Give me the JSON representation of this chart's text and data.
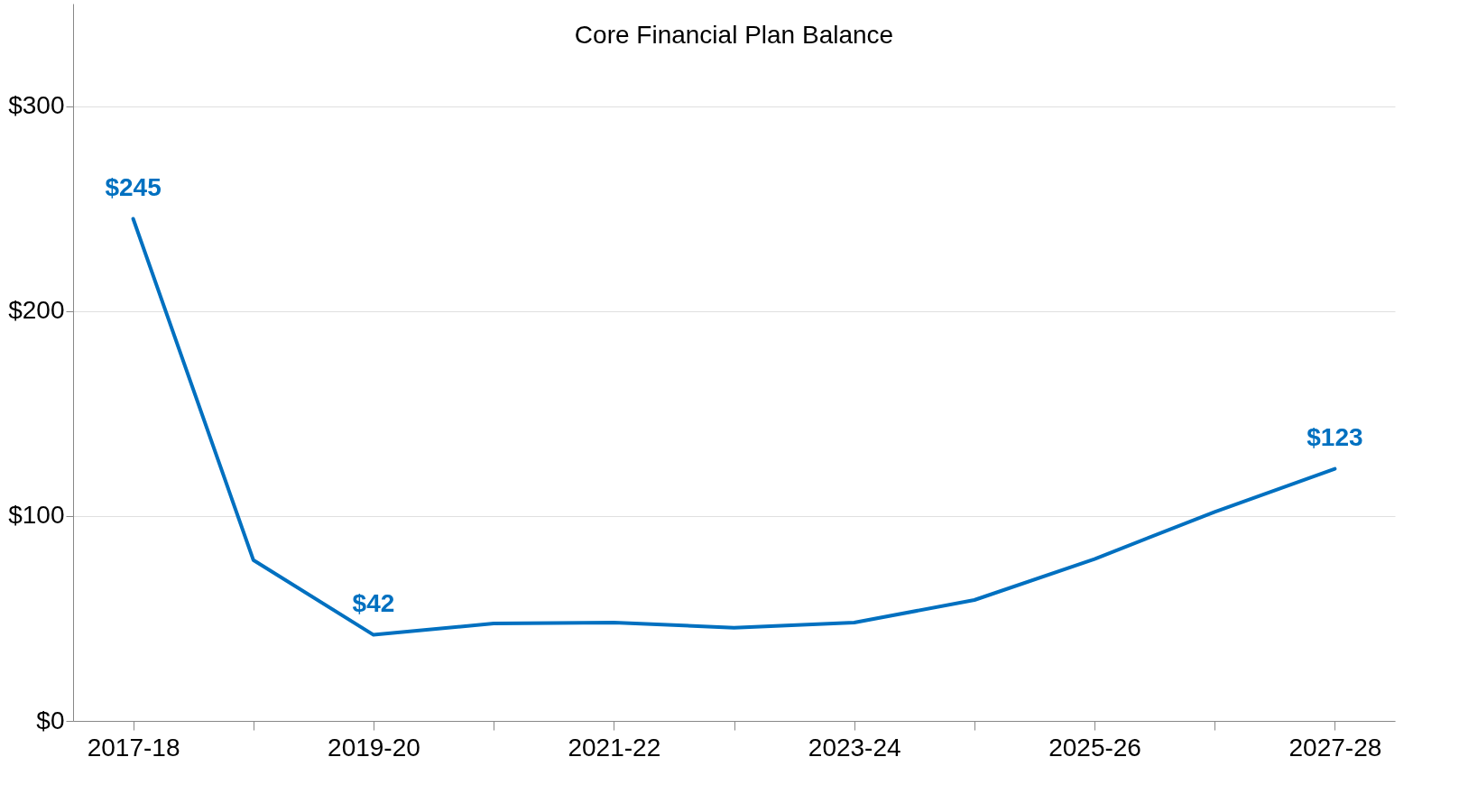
{
  "chart_data": {
    "type": "line",
    "title": "Core Financial Plan Balance",
    "categories": [
      "2017-18",
      null,
      "2019-20",
      null,
      "2021-22",
      null,
      "2023-24",
      null,
      "2025-26",
      null,
      "2027-28"
    ],
    "series": [
      {
        "color": "#0070c0",
        "values": [
          245,
          78.5,
          42,
          47.5,
          48,
          45.5,
          48,
          59,
          79,
          102,
          123
        ],
        "value_labels": [
          "$245",
          null,
          "$42",
          null,
          null,
          null,
          null,
          null,
          null,
          null,
          "$123"
        ]
      }
    ],
    "ylim": [
      0,
      350
    ],
    "yticks": [
      {
        "value": 0,
        "label": "$0"
      },
      {
        "value": 100,
        "label": "$100"
      },
      {
        "value": 200,
        "label": "$200"
      },
      {
        "value": 300,
        "label": "$300"
      }
    ],
    "grid": "y"
  }
}
